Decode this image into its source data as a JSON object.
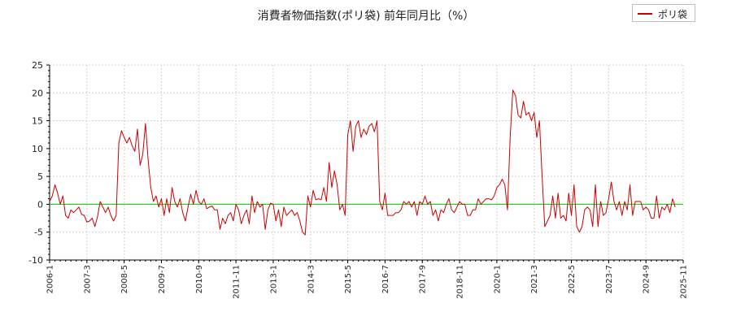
{
  "chart_data": {
    "type": "line",
    "title": "消費者物価指数(ポリ袋) 前年同月比（%）",
    "xlabel": "",
    "ylabel": "",
    "ylim": [
      -10,
      25
    ],
    "yticks": [
      "25",
      "20",
      "15",
      "10",
      "5",
      "0",
      "-5",
      "-10"
    ],
    "xticks": [
      "2006-1",
      "2007-3",
      "2008-5",
      "2009-7",
      "2010-9",
      "2011-11",
      "2013-1",
      "2014-3",
      "2015-5",
      "2016-7",
      "2017-9",
      "2018-11",
      "2020-1",
      "2021-3",
      "2022-5",
      "2023-7",
      "2024-9",
      "2025-11"
    ],
    "grid": true,
    "legend_position": "top-right",
    "reference_line": {
      "y": 0,
      "color": "#00cc00"
    },
    "series": [
      {
        "name": "ポリ袋",
        "color": "#cc0000",
        "start": "2006-1",
        "values": [
          0.5,
          1.5,
          3.5,
          2.0,
          0.0,
          1.5,
          -2.0,
          -2.5,
          -1.0,
          -1.5,
          -1.0,
          -0.5,
          -1.8,
          -2.0,
          -3.2,
          -3.0,
          -2.5,
          -4.0,
          -2.2,
          0.5,
          -0.5,
          -1.5,
          -0.5,
          -2.0,
          -3.0,
          -2.0,
          11.0,
          13.2,
          12.0,
          11.0,
          12.0,
          10.5,
          9.5,
          13.5,
          7.0,
          9.0,
          14.5,
          8.0,
          3.0,
          0.5,
          1.5,
          -0.5,
          1.0,
          -2.0,
          1.0,
          -1.5,
          3.0,
          0.5,
          -0.5,
          1.0,
          -1.5,
          -3.0,
          -0.5,
          1.8,
          0.0,
          2.5,
          0.5,
          0.0,
          1.0,
          -0.8,
          -0.5,
          -0.3,
          -1.0,
          -1.0,
          -4.5,
          -2.5,
          -3.5,
          -2.0,
          -1.5,
          -3.0,
          0.0,
          -1.0,
          -3.5,
          -2.0,
          -1.0,
          -3.5,
          1.5,
          -1.5,
          0.5,
          -0.5,
          0.0,
          -4.5,
          -1.0,
          0.2,
          0.0,
          -3.0,
          -1.0,
          -4.0,
          -0.5,
          -2.0,
          -1.5,
          -1.0,
          -2.0,
          -1.5,
          -3.0,
          -5.0,
          -5.5,
          1.5,
          -0.5,
          2.5,
          0.8,
          1.0,
          0.8,
          3.0,
          0.5,
          7.5,
          3.0,
          6.0,
          3.5,
          -1.0,
          0.0,
          -2.0,
          12.5,
          15.0,
          9.5,
          14.0,
          15.0,
          12.0,
          13.5,
          12.5,
          14.0,
          14.5,
          13.0,
          15.0,
          0.5,
          -1.0,
          2.0,
          -2.0,
          -2.0,
          -2.0,
          -1.5,
          -1.5,
          -1.0,
          0.5,
          0.0,
          0.5,
          -0.5,
          0.5,
          -2.0,
          0.5,
          0.0,
          1.5,
          0.0,
          0.5,
          -2.0,
          -1.0,
          -3.0,
          -1.0,
          -1.5,
          0.0,
          1.0,
          -1.0,
          -1.5,
          -0.5,
          0.5,
          0.0,
          0.0,
          -2.0,
          -2.0,
          -1.0,
          -1.0,
          1.0,
          0.0,
          0.5,
          1.0,
          1.0,
          0.8,
          1.5,
          3.0,
          3.5,
          4.5,
          3.5,
          -1.0,
          12.0,
          20.5,
          19.5,
          16.0,
          15.5,
          18.5,
          16.0,
          16.5,
          15.0,
          16.5,
          12.0,
          15.0,
          5.0,
          -4.0,
          -3.0,
          -2.0,
          1.5,
          -2.5,
          2.0,
          -2.5,
          -2.0,
          -3.0,
          2.0,
          -2.0,
          3.5,
          -4.0,
          -5.0,
          -4.0,
          -1.0,
          -0.5,
          -1.0,
          -4.0,
          3.5,
          -4.0,
          0.5,
          -2.0,
          -1.5,
          1.0,
          4.0,
          0.5,
          -1.0,
          0.5,
          -2.0,
          0.5,
          -1.0,
          3.5,
          -2.0,
          0.5,
          0.5,
          0.5,
          -1.0,
          -0.5,
          -1.0,
          -2.5,
          -2.5,
          1.5,
          -2.5,
          -0.5,
          -1.0,
          0.0,
          -1.5,
          1.0,
          -0.5
        ]
      }
    ]
  }
}
